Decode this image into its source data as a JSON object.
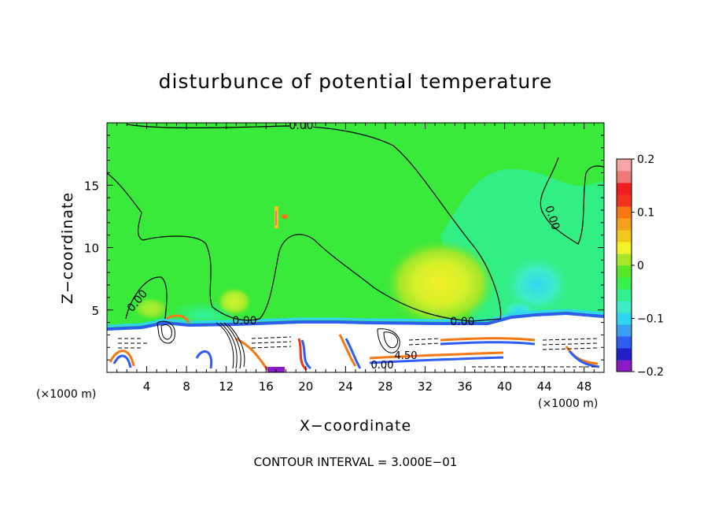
{
  "chart_data": {
    "type": "heatmap",
    "title": "disturbunce of potential temperature",
    "xlabel": "X−coordinate",
    "ylabel": "Z−coordinate",
    "x_unit_left": "(×1000 m)",
    "x_unit_right": "(×1000 m)",
    "xlim": [
      0,
      50
    ],
    "ylim": [
      0,
      20
    ],
    "x_ticks": [
      4,
      8,
      12,
      16,
      20,
      24,
      28,
      32,
      36,
      40,
      44,
      48
    ],
    "x_tick_labels": [
      "4",
      "8",
      "12",
      "16",
      "20",
      "24",
      "28",
      "32",
      "36",
      "40",
      "44",
      "48"
    ],
    "y_ticks": [
      5,
      10,
      15
    ],
    "y_tick_labels": [
      "5",
      "10",
      "15"
    ],
    "colorbar": {
      "range": [
        -0.2,
        0.2
      ],
      "tick_values": [
        0.2,
        0.1,
        0,
        -0.1,
        -0.2
      ],
      "tick_labels": [
        "0.2",
        "0.1",
        "0",
        "−0.1",
        "−0.2"
      ],
      "colors": [
        "#8a1cc8",
        "#2020c8",
        "#2e5ef0",
        "#3a9ef5",
        "#30d6f0",
        "#40ecc8",
        "#30f090",
        "#3af04a",
        "#5ae62c",
        "#a8e62a",
        "#f2f22a",
        "#f2c81e",
        "#f5a01e",
        "#f57814",
        "#f0321e",
        "#f01e1e",
        "#f07878",
        "#f5a5a5"
      ]
    },
    "background_value_color": "#3aea3a",
    "contour_labels": [
      {
        "text": "0.00",
        "x": 19.0,
        "z": 19.6
      },
      {
        "text": "0.00",
        "x": 44.2,
        "z": 12.4
      },
      {
        "text": "0.00",
        "x": 2.8,
        "z": 5.6
      },
      {
        "text": "0.00",
        "x": 13.8,
        "z": 4.2
      },
      {
        "text": "0.00",
        "x": 35.0,
        "z": 4.1
      },
      {
        "text": "0.00",
        "x": 27.7,
        "z": 0.6
      },
      {
        "text": "4.50",
        "x": 30.5,
        "z": 1.3
      }
    ],
    "footer": "CONTOUR INTERVAL = 3.000E−01"
  }
}
